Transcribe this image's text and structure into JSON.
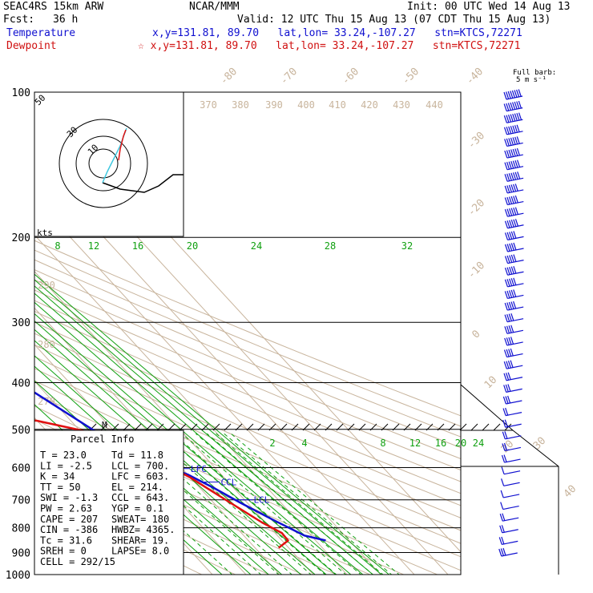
{
  "header": {
    "model": "SEAC4RS 15km ARW",
    "fcst_label": "Fcst:",
    "fcst_value": "36 h",
    "center": "NCAR/MMM",
    "init": "Init: 00 UTC Wed 14 Aug 13",
    "valid": "Valid: 12 UTC Thu 15 Aug 13 (07 CDT Thu 15 Aug 13)",
    "temperature_label": "Temperature",
    "temperature_info": "x,y=131.81, 89.70   lat,lon= 33.24,-107.27   stn=KTCS,72271",
    "dewpoint_label": "Dewpoint",
    "dewpoint_info": "☆ x,y=131.81, 89.70   lat,lon= 33.24,-107.27   stn=KTCS,72271",
    "barb_key_1": "Full barb:",
    "barb_key_2": "5 m s⁻¹"
  },
  "colors": {
    "temperature": "#1010d0",
    "dewpoint": "#e01010",
    "isotherm": "#c8b49c",
    "mixing_ratio": "#10a010",
    "grid": "#000000"
  },
  "parcel_info": {
    "title": "Parcel Info",
    "rows": [
      [
        "T  =    23.0",
        "Td =  11.8"
      ],
      [
        "LI =    -2.5",
        "LCL =  700."
      ],
      [
        "K  =      34",
        "LFC =  603."
      ],
      [
        "TT =      50",
        "EL  =  214."
      ],
      [
        "SWI =   -1.3",
        "CCL =  643."
      ],
      [
        "PW =    2.63",
        "YGP =   0.1"
      ],
      [
        "CAPE =   207",
        "SWEAT=  180"
      ],
      [
        "CIN =   -386",
        "HWBZ= 4365."
      ],
      [
        "Tc =    31.6",
        "SHEAR=  19."
      ],
      [
        "SREH =     0",
        "LAPSE=  8.0"
      ],
      [
        "CELL = 292/15",
        ""
      ]
    ]
  },
  "hodograph": {
    "ring_labels": [
      "50",
      "30",
      "10"
    ],
    "units_label": "kts"
  },
  "chart_data": {
    "type": "line",
    "title": "",
    "xlabel": "",
    "ylabel": "",
    "pressure_levels": [
      100,
      200,
      300,
      400,
      500,
      600,
      700,
      800,
      900,
      1000
    ],
    "pressure_labels": [
      "100",
      "200",
      "300",
      "400",
      "500",
      "600",
      "700",
      "800",
      "900",
      "1000"
    ],
    "ylim": [
      1000,
      100
    ],
    "y_scale": "log",
    "isotherm_labels": [
      "-80",
      "-70",
      "-60",
      "-50",
      "-40",
      "-30",
      "-20",
      "-10",
      "0",
      "10",
      "20",
      "30",
      "40"
    ],
    "theta_labels": [
      "370",
      "380",
      "390",
      "400",
      "410",
      "420",
      "430",
      "440",
      "290",
      "280",
      "270"
    ],
    "mixing_ratio_upper_labels": [
      "8",
      "12",
      "16",
      "20",
      "24",
      "28",
      "32"
    ],
    "mixing_ratio_lower_labels": [
      "2",
      "4",
      "8",
      "12",
      "16",
      "20",
      "24"
    ],
    "levels": {
      "EL": {
        "label": "EL",
        "p": 214
      },
      "LFC": {
        "label": "LFC",
        "p": 603
      },
      "CCL": {
        "label": "CCL",
        "p": 643
      },
      "LCL": {
        "label": "LCL",
        "p": 700
      },
      "M": {
        "label": "M",
        "p": 500
      }
    },
    "series": [
      {
        "name": "Temperature",
        "points_T_p": [
          [
            -68,
            100
          ],
          [
            -66,
            120
          ],
          [
            -66,
            150
          ],
          [
            -62,
            175
          ],
          [
            -57,
            200
          ],
          [
            -50,
            240
          ],
          [
            -44,
            280
          ],
          [
            -37,
            320
          ],
          [
            -29,
            370
          ],
          [
            -23,
            420
          ],
          [
            -16,
            500
          ],
          [
            -7,
            580
          ],
          [
            0,
            620
          ],
          [
            4,
            660
          ],
          [
            8,
            710
          ],
          [
            13,
            770
          ],
          [
            18,
            830
          ],
          [
            23,
            850
          ]
        ]
      },
      {
        "name": "Dewpoint",
        "points_T_p": [
          [
            -78,
            100
          ],
          [
            -82,
            130
          ],
          [
            -86,
            160
          ],
          [
            -90,
            185
          ],
          [
            -86,
            200
          ],
          [
            -76,
            230
          ],
          [
            -66,
            260
          ],
          [
            -58,
            280
          ],
          [
            -50,
            320
          ],
          [
            -48,
            350
          ],
          [
            -70,
            375
          ],
          [
            -100,
            382
          ],
          [
            -90,
            425
          ],
          [
            -70,
            450
          ],
          [
            -30,
            480
          ],
          [
            -16,
            510
          ],
          [
            -10,
            545
          ],
          [
            -5,
            580
          ],
          [
            0,
            630
          ],
          [
            5,
            710
          ],
          [
            9,
            780
          ],
          [
            12,
            820
          ],
          [
            11.8,
            850
          ],
          [
            7,
            880
          ]
        ]
      }
    ],
    "wind_barbs_speed_m_s": [
      40,
      40,
      40,
      35,
      35,
      35,
      35,
      35,
      30,
      30,
      30,
      30,
      25,
      25,
      25,
      25,
      25,
      25,
      25,
      20,
      20,
      20,
      20,
      20,
      15,
      15,
      15,
      10,
      10,
      10,
      10,
      10,
      5,
      5,
      5,
      5,
      10,
      10,
      10,
      15
    ]
  }
}
